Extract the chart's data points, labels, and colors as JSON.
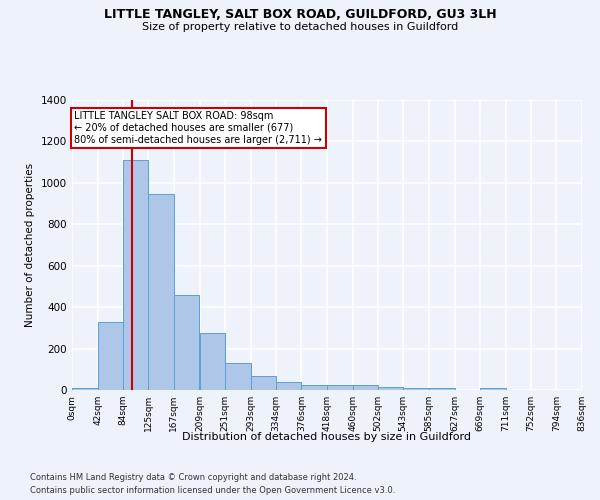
{
  "title": "LITTLE TANGLEY, SALT BOX ROAD, GUILDFORD, GU3 3LH",
  "subtitle": "Size of property relative to detached houses in Guildford",
  "xlabel": "Distribution of detached houses by size in Guildford",
  "ylabel": "Number of detached properties",
  "footnote1": "Contains HM Land Registry data © Crown copyright and database right 2024.",
  "footnote2": "Contains public sector information licensed under the Open Government Licence v3.0.",
  "bar_values": [
    10,
    330,
    1110,
    945,
    460,
    275,
    130,
    68,
    38,
    22,
    24,
    22,
    15,
    10,
    10,
    0,
    12,
    0,
    0,
    0
  ],
  "bin_edges": [
    0,
    42,
    84,
    125,
    167,
    209,
    251,
    293,
    334,
    376,
    418,
    460,
    502,
    543,
    585,
    627,
    669,
    711,
    752,
    794,
    836
  ],
  "tick_labels": [
    "0sqm",
    "42sqm",
    "84sqm",
    "125sqm",
    "167sqm",
    "209sqm",
    "251sqm",
    "293sqm",
    "334sqm",
    "376sqm",
    "418sqm",
    "460sqm",
    "502sqm",
    "543sqm",
    "585sqm",
    "627sqm",
    "669sqm",
    "711sqm",
    "752sqm",
    "794sqm",
    "836sqm"
  ],
  "bar_color": "#aec6e8",
  "bar_edge_color": "#5a9fd4",
  "bg_color": "#eef2fb",
  "grid_color": "#ffffff",
  "vline_x": 98,
  "vline_color": "#cc0000",
  "annotation_text": "LITTLE TANGLEY SALT BOX ROAD: 98sqm\n← 20% of detached houses are smaller (677)\n80% of semi-detached houses are larger (2,711) →",
  "annotation_box_color": "#ffffff",
  "annotation_box_edge": "#cc0000",
  "ylim": [
    0,
    1400
  ],
  "yticks": [
    0,
    200,
    400,
    600,
    800,
    1000,
    1200,
    1400
  ]
}
